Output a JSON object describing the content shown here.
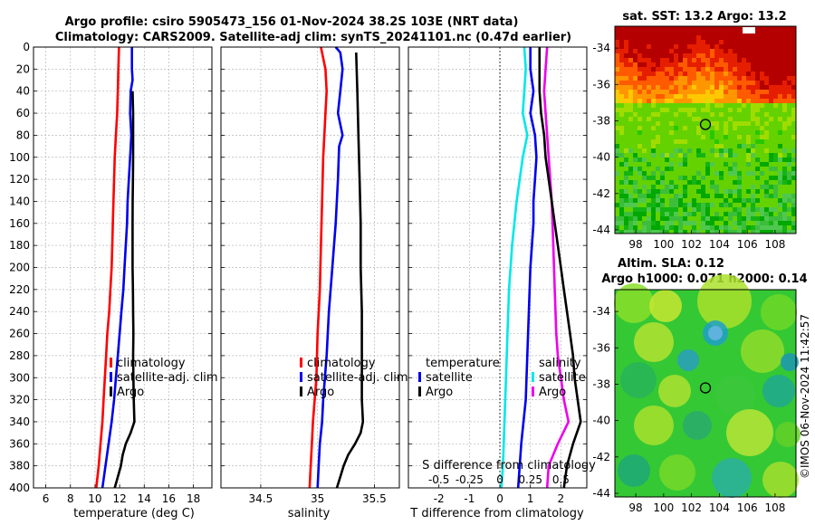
{
  "title": {
    "line1": "Argo profile: csiro 5905473_156 01-Nov-2024 38.2S 103E (NRT data)",
    "line2": "Climatology: CARS2009. Satellite-adj clim: synTS_20241101.nc (0.47d earlier)"
  },
  "side_text": "©IMOS 06-Nov-2024 11:42:57",
  "colors": {
    "climatology": "#ff0000",
    "satellite": "#0000ee",
    "argo": "#000000",
    "t_satellite": "#0000ee",
    "s_satellite": "#00e8e8",
    "s_argo": "#ee00ee",
    "marker": "#000000"
  },
  "chart_data": [
    {
      "id": "temperature",
      "type": "line",
      "xlabel": "temperature (deg C)",
      "ylabel": "",
      "xlim": [
        5,
        19.5
      ],
      "ylim": [
        400,
        0
      ],
      "xticks": [
        6,
        8,
        10,
        12,
        14,
        16,
        18
      ],
      "yticks": [
        0,
        20,
        40,
        60,
        80,
        100,
        120,
        140,
        160,
        180,
        200,
        220,
        240,
        260,
        280,
        300,
        320,
        340,
        360,
        380,
        400
      ],
      "grid": true,
      "legend": [
        "climatology",
        "satellite-adj. clim",
        "Argo"
      ],
      "series": [
        {
          "name": "climatology",
          "color_key": "climatology",
          "points": [
            [
              11.95,
              0
            ],
            [
              11.9,
              20
            ],
            [
              11.85,
              40
            ],
            [
              11.8,
              60
            ],
            [
              11.7,
              80
            ],
            [
              11.6,
              100
            ],
            [
              11.55,
              120
            ],
            [
              11.5,
              140
            ],
            [
              11.45,
              160
            ],
            [
              11.4,
              180
            ],
            [
              11.35,
              200
            ],
            [
              11.25,
              220
            ],
            [
              11.15,
              240
            ],
            [
              11.0,
              260
            ],
            [
              10.9,
              280
            ],
            [
              10.8,
              300
            ],
            [
              10.7,
              320
            ],
            [
              10.6,
              340
            ],
            [
              10.45,
              360
            ],
            [
              10.3,
              380
            ],
            [
              10.1,
              400
            ]
          ]
        },
        {
          "name": "satellite-adj. clim",
          "color_key": "satellite",
          "points": [
            [
              13.0,
              0
            ],
            [
              13.0,
              20
            ],
            [
              13.05,
              30
            ],
            [
              12.9,
              40
            ],
            [
              12.85,
              60
            ],
            [
              12.95,
              80
            ],
            [
              12.85,
              100
            ],
            [
              12.75,
              120
            ],
            [
              12.65,
              140
            ],
            [
              12.6,
              160
            ],
            [
              12.5,
              180
            ],
            [
              12.4,
              200
            ],
            [
              12.3,
              220
            ],
            [
              12.15,
              240
            ],
            [
              12.0,
              260
            ],
            [
              11.85,
              280
            ],
            [
              11.7,
              300
            ],
            [
              11.55,
              320
            ],
            [
              11.35,
              340
            ],
            [
              11.1,
              360
            ],
            [
              10.85,
              380
            ],
            [
              10.6,
              400
            ]
          ]
        },
        {
          "name": "Argo",
          "color_key": "argo",
          "points": [
            [
              13.05,
              40
            ],
            [
              13.1,
              60
            ],
            [
              13.1,
              80
            ],
            [
              13.1,
              100
            ],
            [
              13.08,
              120
            ],
            [
              13.06,
              140
            ],
            [
              13.05,
              160
            ],
            [
              13.05,
              180
            ],
            [
              13.05,
              200
            ],
            [
              13.08,
              220
            ],
            [
              13.1,
              240
            ],
            [
              13.12,
              260
            ],
            [
              13.1,
              280
            ],
            [
              13.12,
              300
            ],
            [
              13.15,
              320
            ],
            [
              13.2,
              340
            ],
            [
              12.9,
              350
            ],
            [
              12.5,
              360
            ],
            [
              12.25,
              370
            ],
            [
              12.1,
              380
            ],
            [
              11.85,
              390
            ],
            [
              11.6,
              400
            ]
          ]
        }
      ]
    },
    {
      "id": "salinity",
      "type": "line",
      "xlabel": "salinity",
      "ylabel": "",
      "xlim": [
        34.15,
        35.72
      ],
      "ylim": [
        400,
        0
      ],
      "xticks": [
        34.5,
        35,
        35.5
      ],
      "xticklabels": [
        "34.5",
        "35",
        "35.5"
      ],
      "grid": true,
      "legend": [
        "climatology",
        "satellite-adj. clim",
        "Argo"
      ],
      "series": [
        {
          "name": "climatology",
          "color_key": "climatology",
          "points": [
            [
              35.03,
              0
            ],
            [
              35.05,
              10
            ],
            [
              35.07,
              20
            ],
            [
              35.08,
              40
            ],
            [
              35.07,
              60
            ],
            [
              35.06,
              80
            ],
            [
              35.05,
              100
            ],
            [
              35.04,
              140
            ],
            [
              35.03,
              180
            ],
            [
              35.02,
              220
            ],
            [
              35.0,
              260
            ],
            [
              34.99,
              300
            ],
            [
              34.96,
              340
            ],
            [
              34.95,
              360
            ],
            [
              34.94,
              380
            ],
            [
              34.93,
              400
            ]
          ]
        },
        {
          "name": "satellite-adj. clim",
          "color_key": "satellite",
          "points": [
            [
              35.16,
              0
            ],
            [
              35.2,
              5
            ],
            [
              35.22,
              20
            ],
            [
              35.2,
              40
            ],
            [
              35.18,
              60
            ],
            [
              35.22,
              80
            ],
            [
              35.19,
              90
            ],
            [
              35.18,
              120
            ],
            [
              35.16,
              160
            ],
            [
              35.13,
              200
            ],
            [
              35.1,
              240
            ],
            [
              35.08,
              280
            ],
            [
              35.05,
              320
            ],
            [
              35.04,
              340
            ],
            [
              35.02,
              360
            ],
            [
              35.01,
              380
            ],
            [
              35.0,
              400
            ]
          ]
        },
        {
          "name": "Argo",
          "color_key": "argo",
          "points": [
            [
              35.34,
              5
            ],
            [
              35.35,
              40
            ],
            [
              35.36,
              80
            ],
            [
              35.37,
              120
            ],
            [
              35.38,
              160
            ],
            [
              35.38,
              200
            ],
            [
              35.39,
              240
            ],
            [
              35.39,
              280
            ],
            [
              35.39,
              320
            ],
            [
              35.4,
              340
            ],
            [
              35.38,
              350
            ],
            [
              35.33,
              360
            ],
            [
              35.27,
              370
            ],
            [
              35.23,
              380
            ],
            [
              35.2,
              390
            ],
            [
              35.17,
              400
            ]
          ]
        }
      ]
    },
    {
      "id": "differences",
      "type": "line",
      "xlabel": "T difference from climatology",
      "xlabel_top": "S difference from climatology",
      "ylabel": "",
      "xlim": [
        -3,
        2.85
      ],
      "ylim": [
        400,
        0
      ],
      "xticks": [
        -2,
        -1,
        0,
        1,
        2
      ],
      "xticklabels": [
        "-2",
        "-1",
        "0",
        "1",
        "2"
      ],
      "s_ticklabels": [
        "-0.5",
        "-0.25",
        "0",
        "0.25",
        "0.5"
      ],
      "grid": true,
      "legend_temperature": {
        "title": "temperature",
        "items": [
          "satellite",
          "Argo"
        ]
      },
      "legend_salinity": {
        "title": "salinity",
        "items": [
          "satellite",
          "Argo"
        ]
      },
      "series": [
        {
          "name": "T satellite",
          "color_key": "t_satellite",
          "points": [
            [
              1.0,
              0
            ],
            [
              1.0,
              20
            ],
            [
              1.1,
              40
            ],
            [
              1.0,
              60
            ],
            [
              1.15,
              80
            ],
            [
              1.2,
              100
            ],
            [
              1.15,
              120
            ],
            [
              1.1,
              140
            ],
            [
              1.1,
              160
            ],
            [
              1.0,
              200
            ],
            [
              0.95,
              240
            ],
            [
              0.9,
              280
            ],
            [
              0.85,
              320
            ],
            [
              0.7,
              360
            ],
            [
              0.6,
              400
            ]
          ]
        },
        {
          "name": "S satellite",
          "color_key": "s_satellite",
          "points": [
            [
              0.8,
              0
            ],
            [
              0.85,
              20
            ],
            [
              0.8,
              40
            ],
            [
              0.75,
              60
            ],
            [
              0.9,
              80
            ],
            [
              0.75,
              100
            ],
            [
              0.55,
              140
            ],
            [
              0.4,
              180
            ],
            [
              0.3,
              220
            ],
            [
              0.25,
              260
            ],
            [
              0.2,
              300
            ],
            [
              0.15,
              340
            ],
            [
              0.1,
              380
            ],
            [
              0.05,
              400
            ]
          ]
        },
        {
          "name": "S Argo",
          "color_key": "s_argo",
          "points": [
            [
              1.55,
              0
            ],
            [
              1.5,
              20
            ],
            [
              1.45,
              40
            ],
            [
              1.5,
              60
            ],
            [
              1.55,
              80
            ],
            [
              1.6,
              100
            ],
            [
              1.65,
              120
            ],
            [
              1.7,
              140
            ],
            [
              1.75,
              180
            ],
            [
              1.8,
              220
            ],
            [
              1.85,
              260
            ],
            [
              1.9,
              280
            ],
            [
              2.0,
              300
            ],
            [
              2.1,
              320
            ],
            [
              2.25,
              340
            ],
            [
              1.9,
              360
            ],
            [
              1.6,
              380
            ],
            [
              1.55,
              400
            ]
          ]
        },
        {
          "name": "T Argo",
          "color_key": "argo",
          "points": [
            [
              1.3,
              0
            ],
            [
              1.3,
              20
            ],
            [
              1.3,
              40
            ],
            [
              1.35,
              60
            ],
            [
              1.45,
              80
            ],
            [
              1.5,
              100
            ],
            [
              1.6,
              120
            ],
            [
              1.7,
              140
            ],
            [
              1.8,
              160
            ],
            [
              1.9,
              180
            ],
            [
              2.0,
              200
            ],
            [
              2.1,
              220
            ],
            [
              2.2,
              240
            ],
            [
              2.3,
              260
            ],
            [
              2.4,
              280
            ],
            [
              2.45,
              300
            ],
            [
              2.55,
              320
            ],
            [
              2.65,
              340
            ],
            [
              2.4,
              360
            ],
            [
              2.2,
              380
            ],
            [
              2.1,
              400
            ]
          ]
        }
      ]
    },
    {
      "id": "sst_map",
      "type": "heatmap",
      "title": "sat. SST: 13.2 Argo: 13.2",
      "xlim": [
        96.5,
        109.5
      ],
      "ylim": [
        -44.2,
        -32.8
      ],
      "xticks": [
        98,
        100,
        102,
        104,
        106,
        108
      ],
      "yticks": [
        -34,
        -36,
        -38,
        -40,
        -42,
        -44
      ],
      "marker": [
        103,
        -38.2
      ]
    },
    {
      "id": "sla_map",
      "type": "heatmap",
      "title_line1": "Altim. SLA: 0.12",
      "title_line2": "Argo h1000: 0.071 h2000: 0.14",
      "xlim": [
        96.5,
        109.5
      ],
      "ylim": [
        -44.2,
        -32.8
      ],
      "xticks": [
        98,
        100,
        102,
        104,
        106,
        108
      ],
      "yticks": [
        -34,
        -36,
        -38,
        -40,
        -42,
        -44
      ],
      "marker": [
        103,
        -38.2
      ]
    }
  ]
}
